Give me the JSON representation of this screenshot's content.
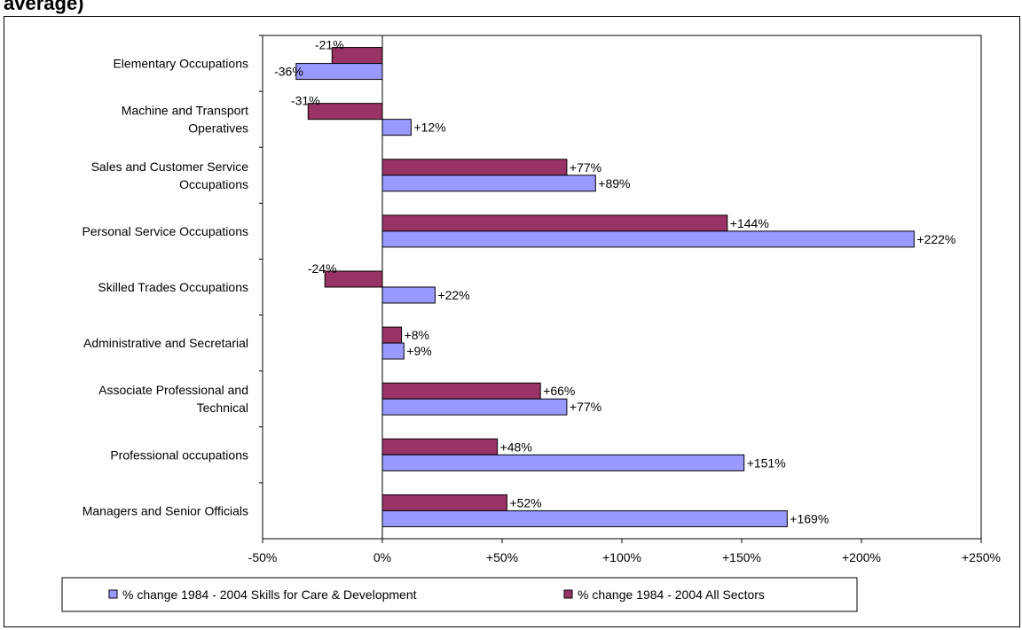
{
  "title_fragment": "average)",
  "chart_data": {
    "type": "bar",
    "orientation": "horizontal",
    "categories": [
      [
        "Elementary Occupations"
      ],
      [
        "Machine and Transport",
        "Operatives"
      ],
      [
        "Sales and Customer Service",
        "Occupations"
      ],
      [
        "Personal Service Occupations"
      ],
      [
        "Skilled Trades Occupations"
      ],
      [
        "Administrative and Secretarial"
      ],
      [
        "Associate Professional and",
        "Technical"
      ],
      [
        "Professional occupations"
      ],
      [
        "Managers and Senior Officials"
      ]
    ],
    "series": [
      {
        "name": "% change 1984 - 2004 All Sectors",
        "color": "#993366",
        "values": [
          -21,
          -31,
          77,
          144,
          -24,
          8,
          66,
          48,
          52
        ],
        "labels": [
          "-21%",
          "-31%",
          "+77%",
          "+144%",
          "-24%",
          "+8%",
          "+66%",
          "+48%",
          "+52%"
        ]
      },
      {
        "name": "% change 1984 - 2004 Skills for Care & Development",
        "color": "#9999FF",
        "values": [
          -36,
          12,
          89,
          222,
          22,
          9,
          77,
          151,
          169
        ],
        "labels": [
          "-36%",
          "+12%",
          "+89%",
          "+222%",
          "+22%",
          "+9%",
          "+77%",
          "+151%",
          "+169%"
        ]
      }
    ],
    "xlim": [
      -50,
      250
    ],
    "xticks": [
      -50,
      0,
      50,
      100,
      150,
      200,
      250
    ],
    "xtick_labels": [
      "-50%",
      "0%",
      "+50%",
      "+100%",
      "+150%",
      "+200%",
      "+250%"
    ],
    "legend": {
      "position": "bottom",
      "entries": [
        "% change 1984 - 2004 Skills for Care & Development",
        "% change 1984 - 2004 All Sectors"
      ]
    },
    "grid": false
  }
}
